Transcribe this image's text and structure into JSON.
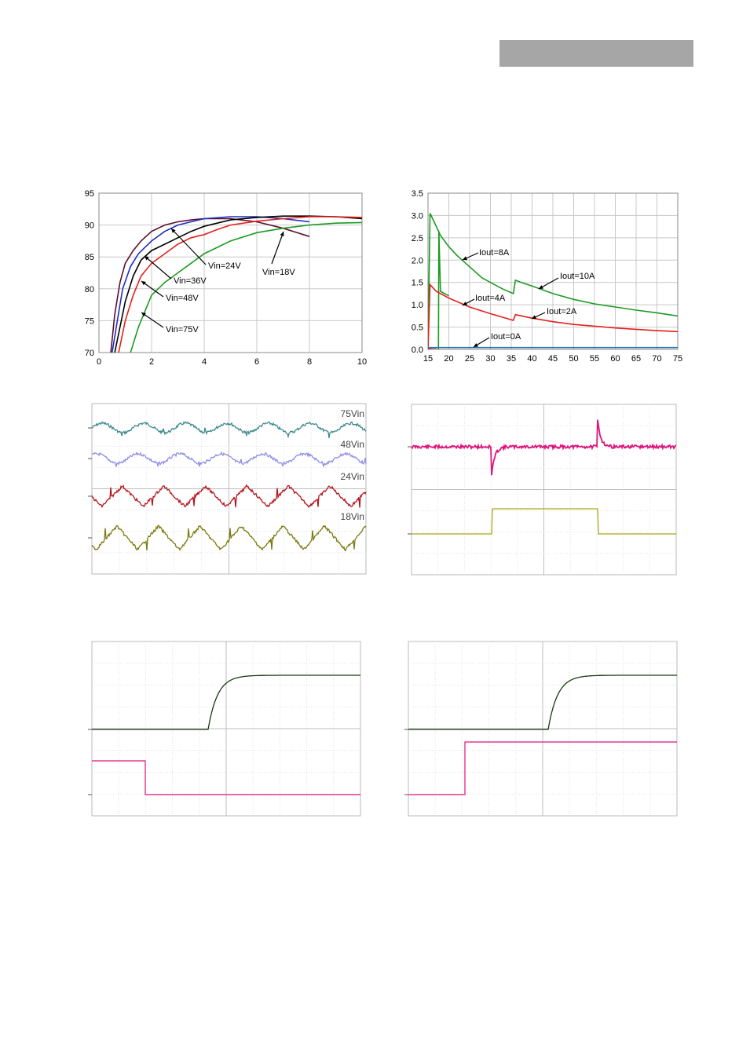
{
  "header": {
    "bar_text": ""
  },
  "chart_data": [
    {
      "type": "line",
      "title": "",
      "xlabel": "",
      "ylabel": "",
      "xlim": [
        0,
        10
      ],
      "ylim": [
        70,
        95
      ],
      "xticks": [
        "0",
        "2",
        "4",
        "6",
        "8",
        "10"
      ],
      "yticks": [
        "70",
        "75",
        "80",
        "85",
        "90",
        "95"
      ],
      "grid": true,
      "series": [
        {
          "name": "Vin=18V",
          "color": "#5b0f2e",
          "x": [
            0.45,
            0.6,
            0.8,
            1.0,
            1.3,
            1.6,
            2.0,
            2.5,
            3.0,
            3.5,
            4.0,
            5.0,
            6.0,
            7.0,
            8.0
          ],
          "y": [
            70,
            76,
            81,
            84,
            86,
            87.5,
            89,
            90,
            90.5,
            90.8,
            91,
            91,
            90.5,
            89.5,
            88.2
          ]
        },
        {
          "name": "Vin=24V",
          "color": "#1f2ebf",
          "x": [
            0.5,
            0.7,
            0.9,
            1.2,
            1.5,
            2.0,
            2.5,
            3.0,
            3.5,
            4.0,
            5.0,
            6.0,
            7.0,
            8.0
          ],
          "y": [
            70,
            75,
            80,
            83.5,
            85.5,
            87.5,
            89,
            90,
            90.5,
            91,
            91.3,
            91.3,
            91,
            90.5
          ]
        },
        {
          "name": "Vin=36V",
          "color": "#000000",
          "x": [
            0.6,
            0.8,
            1.0,
            1.3,
            1.6,
            2.0,
            2.5,
            3.0,
            3.5,
            4.0,
            5.0,
            6.0,
            7.0,
            8.0,
            9.0,
            10.0
          ],
          "y": [
            70,
            74,
            78,
            82,
            84.5,
            86,
            87,
            88,
            89,
            89.8,
            90.8,
            91.2,
            91.4,
            91.4,
            91.3,
            91.0
          ]
        },
        {
          "name": "Vin=48V",
          "color": "#e3211c",
          "x": [
            0.75,
            1.0,
            1.3,
            1.6,
            2.0,
            2.5,
            3.0,
            3.5,
            4.0,
            4.5,
            5.0,
            6.0,
            7.0,
            8.0,
            9.0,
            10.0
          ],
          "y": [
            70,
            75,
            79,
            82,
            84,
            85.5,
            87,
            88,
            88.5,
            89.3,
            90,
            90.6,
            91,
            91.3,
            91.3,
            91.2
          ]
        },
        {
          "name": "Vin=75V",
          "color": "#1c9b22",
          "x": [
            1.2,
            1.5,
            1.8,
            2.0,
            2.5,
            3.0,
            3.5,
            4.0,
            4.5,
            5.0,
            6.0,
            7.0,
            8.0,
            9.0,
            10.0
          ],
          "y": [
            70,
            74,
            77,
            79,
            81,
            82.5,
            84,
            85.5,
            86.5,
            87.5,
            88.8,
            89.5,
            90,
            90.3,
            90.4
          ]
        }
      ],
      "annotations": [
        "Vin=24V",
        "Vin=36V",
        "Vin=48V",
        "Vin=75V",
        "Vin=18V"
      ]
    },
    {
      "type": "line",
      "title": "",
      "xlabel": "",
      "ylabel": "",
      "xlim": [
        15,
        75
      ],
      "ylim": [
        0,
        3.5
      ],
      "xticks": [
        "15",
        "20",
        "25",
        "30",
        "35",
        "40",
        "45",
        "50",
        "55",
        "60",
        "65",
        "70",
        "75"
      ],
      "yticks": [
        "0.0",
        "0.5",
        "1.0",
        "1.5",
        "2.0",
        "2.5",
        "3.0",
        "3.5"
      ],
      "grid": true,
      "series": [
        {
          "name": "Iout=10A",
          "color": "#1c9b22",
          "x": [
            15,
            15.5,
            17,
            18,
            20,
            22,
            25,
            28,
            30,
            33,
            35.5,
            36,
            38,
            40,
            45,
            50,
            55,
            60,
            65,
            70,
            75
          ],
          "y": [
            0,
            3.05,
            2.75,
            2.55,
            2.3,
            2.1,
            1.85,
            1.6,
            1.5,
            1.35,
            1.25,
            1.55,
            1.48,
            1.42,
            1.25,
            1.12,
            1.02,
            0.95,
            0.88,
            0.82,
            0.75
          ]
        },
        {
          "name": "Iout=8A",
          "color": "#1c9b22",
          "x": [
            17.5,
            17.6,
            18,
            20
          ],
          "y": [
            0,
            2.65,
            1.3,
            1.2
          ]
        },
        {
          "name": "Iout=4A",
          "color": "#e3211c",
          "x": [
            15,
            15.5,
            17,
            20,
            25,
            30,
            35.5,
            36,
            40,
            45,
            50,
            55,
            60,
            65,
            70,
            75
          ],
          "y": [
            0,
            1.45,
            1.3,
            1.15,
            0.95,
            0.8,
            0.65,
            0.78,
            0.7,
            0.62,
            0.56,
            0.52,
            0.48,
            0.45,
            0.42,
            0.4
          ]
        },
        {
          "name": "Iout=2A",
          "color": "#e3211c",
          "x": [
            15,
            16,
            17
          ],
          "y": [
            0.02,
            0.03,
            0.03
          ]
        },
        {
          "name": "Iout=0A",
          "color": "#2e75b6",
          "x": [
            15,
            20,
            30,
            40,
            50,
            60,
            70,
            75
          ],
          "y": [
            0.04,
            0.04,
            0.04,
            0.04,
            0.04,
            0.04,
            0.04,
            0.04
          ]
        }
      ],
      "annotations": [
        "Iout=8A",
        "Iout=10A",
        "Iout=4A",
        "Iout=2A",
        "Iout=0A"
      ]
    },
    {
      "type": "line",
      "title": "",
      "xlabel": "",
      "ylabel": "",
      "series_labels": [
        "75Vin",
        "48Vin",
        "24Vin",
        "18Vin"
      ],
      "series": [
        {
          "name": "75Vin",
          "color": "#3d8a8a",
          "waveform": "ripple-small"
        },
        {
          "name": "48Vin",
          "color": "#8e8ee8",
          "waveform": "ripple-small"
        },
        {
          "name": "24Vin",
          "color": "#b3141c",
          "waveform": "triangle"
        },
        {
          "name": "18Vin",
          "color": "#7a7a10",
          "waveform": "triangle"
        }
      ],
      "grid": true
    },
    {
      "type": "line",
      "title": "",
      "xlabel": "",
      "ylabel": "",
      "series": [
        {
          "name": "",
          "color": "#e0137a",
          "waveform": "transient-response"
        },
        {
          "name": "",
          "color": "#a8a818",
          "waveform": "load-step"
        }
      ],
      "grid": true
    },
    {
      "type": "line",
      "title": "",
      "xlabel": "",
      "ylabel": "",
      "series": [
        {
          "name": "",
          "color": "#1a3a12",
          "waveform": "rise"
        },
        {
          "name": "",
          "color": "#e0137a",
          "waveform": "step-down"
        }
      ],
      "grid": true
    },
    {
      "type": "line",
      "title": "",
      "xlabel": "",
      "ylabel": "",
      "series": [
        {
          "name": "",
          "color": "#1a3a12",
          "waveform": "rise"
        },
        {
          "name": "",
          "color": "#e0137a",
          "waveform": "step-up"
        }
      ],
      "grid": true
    }
  ]
}
